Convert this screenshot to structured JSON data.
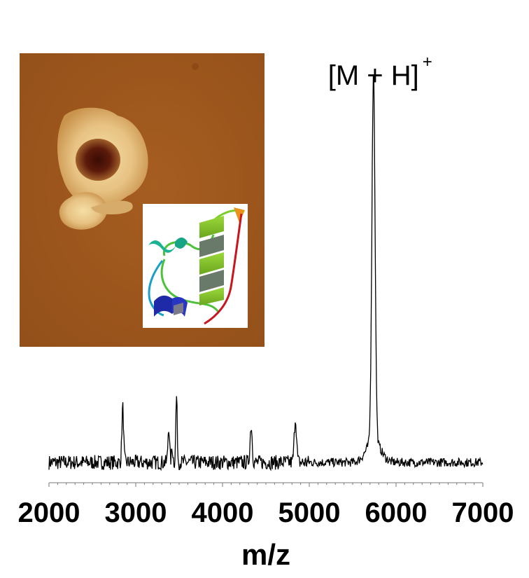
{
  "chart_data": {
    "type": "line",
    "title": "",
    "xlabel": "m/z",
    "ylabel": "",
    "xlim": [
      2000,
      7000
    ],
    "ylim": [
      0,
      100
    ],
    "x_ticks": [
      "2000",
      "3000",
      "4000",
      "5000",
      "6000",
      "7000"
    ],
    "baseline": 2,
    "peaks": [
      {
        "mz": 2850,
        "intensity": 15,
        "width": 10
      },
      {
        "mz": 3380,
        "intensity": 10,
        "width": 9
      },
      {
        "mz": 3420,
        "intensity": 4,
        "width": 8
      },
      {
        "mz": 3470,
        "intensity": 18,
        "width": 8
      },
      {
        "mz": 4330,
        "intensity": 10,
        "width": 12
      },
      {
        "mz": 4840,
        "intensity": 12,
        "width": 13
      },
      {
        "mz": 5740,
        "intensity": 100,
        "width": 18
      },
      {
        "mz": 5740,
        "intensity": 6,
        "width": 80
      }
    ],
    "annotations": [
      {
        "text": "[M + H]",
        "superscript": "+",
        "mz": 5740
      }
    ]
  },
  "colors": {
    "trace": "#000000",
    "afm_background": "#9c561c",
    "afm_feature": "#e8c98a",
    "afm_pit": "#4a1208"
  },
  "insets": {
    "afm_image": "afm-topography-image",
    "protein_structure": "protein-ribbon-structure"
  }
}
